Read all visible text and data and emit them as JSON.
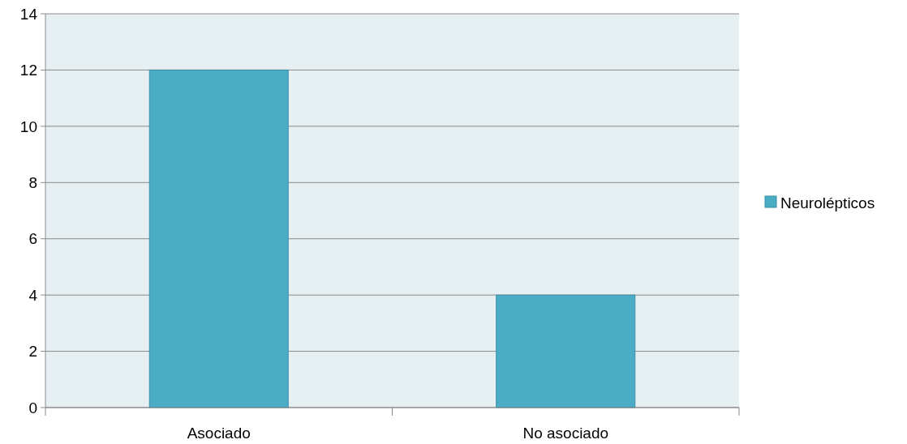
{
  "chart_data": {
    "type": "bar",
    "categories": [
      "Asociado",
      "No asociado"
    ],
    "series": [
      {
        "name": "Neurolépticos",
        "color": "#4bacc6",
        "values": [
          12,
          4
        ]
      }
    ],
    "ylim": [
      0,
      14
    ],
    "yticks": [
      0,
      2,
      4,
      6,
      8,
      10,
      12,
      14
    ],
    "grid": "y",
    "legend": "right"
  }
}
